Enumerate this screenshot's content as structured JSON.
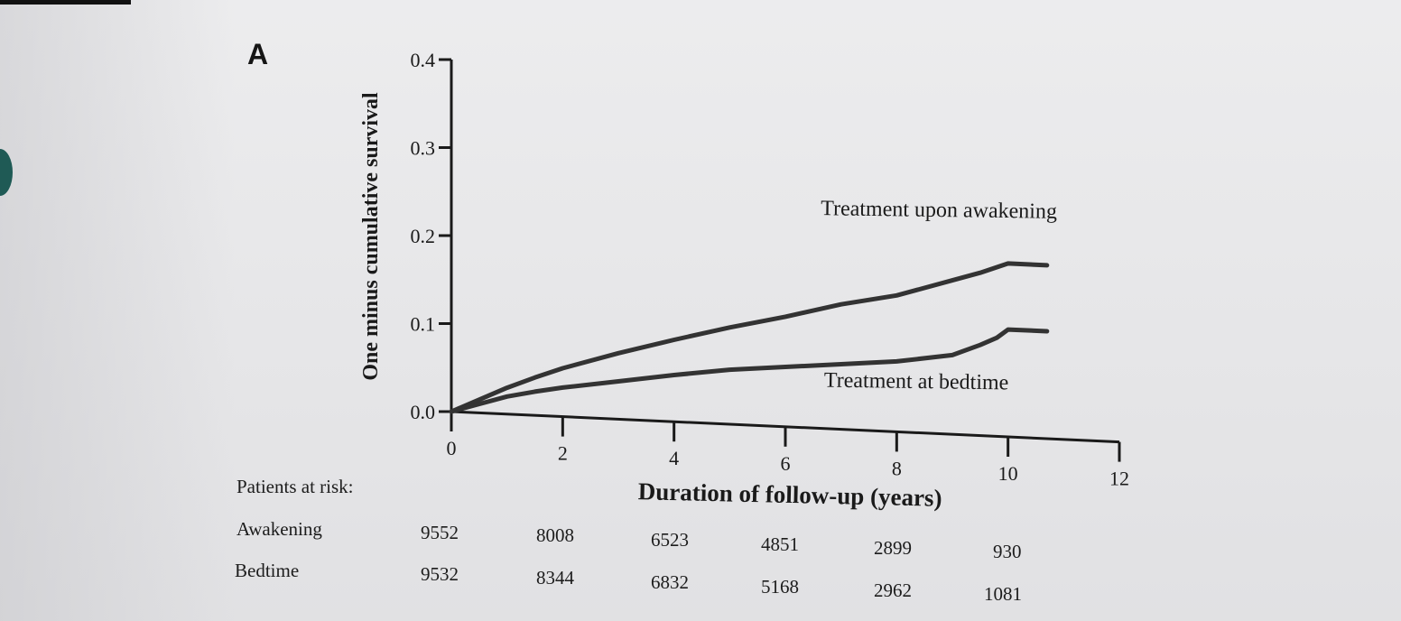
{
  "panel_label": "A",
  "chart_data": {
    "type": "line",
    "ylabel": "One minus cumulative survival",
    "xlabel": "Duration of follow-up (years)",
    "x_ticks": [
      "0",
      "2",
      "4",
      "6",
      "8",
      "10",
      "12"
    ],
    "y_ticks": [
      "0.0",
      "0.1",
      "0.2",
      "0.3",
      "0.4"
    ],
    "xlim": [
      0,
      12
    ],
    "ylim": [
      0,
      0.4
    ],
    "grid": false,
    "legend": "none",
    "series": [
      {
        "name": "Treatment upon awakening",
        "color": "#333333",
        "x": [
          0,
          0.5,
          1,
          1.5,
          2,
          3,
          4,
          5,
          6,
          7,
          8,
          9,
          9.5,
          10,
          10.7
        ],
        "y": [
          0,
          0.015,
          0.03,
          0.043,
          0.055,
          0.075,
          0.093,
          0.11,
          0.125,
          0.142,
          0.155,
          0.175,
          0.185,
          0.197,
          0.197
        ]
      },
      {
        "name": "Treatment at bedtime",
        "color": "#333333",
        "x": [
          0,
          0.5,
          1,
          1.5,
          2,
          3,
          4,
          5,
          6,
          7,
          8,
          9,
          9.5,
          9.8,
          10,
          10.7
        ],
        "y": [
          0,
          0.01,
          0.02,
          0.027,
          0.033,
          0.043,
          0.053,
          0.062,
          0.068,
          0.074,
          0.08,
          0.09,
          0.103,
          0.112,
          0.122,
          0.122
        ]
      }
    ]
  },
  "risk_table": {
    "title": "Patients at risk:",
    "rows": [
      {
        "label": "Awakening",
        "values": [
          "9552",
          "8008",
          "6523",
          "4851",
          "2899",
          "930"
        ]
      },
      {
        "label": "Bedtime",
        "values": [
          "9532",
          "8344",
          "6832",
          "5168",
          "2962",
          "1081"
        ]
      }
    ]
  }
}
